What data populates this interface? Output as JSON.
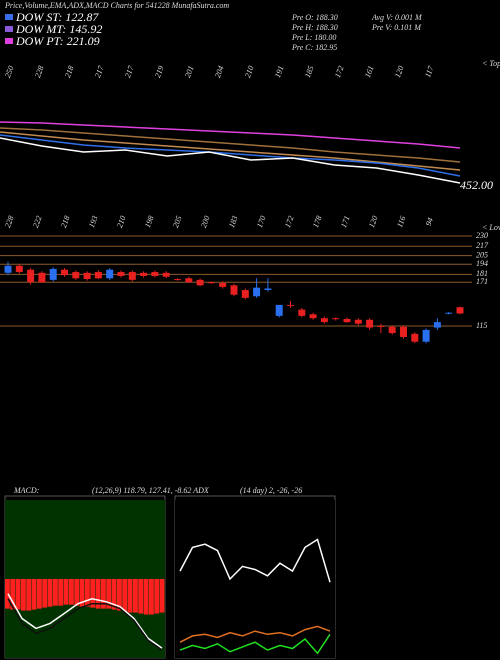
{
  "chart_data": [
    {
      "type": "line",
      "title": "Price,Volume,EMA,ADX,MACD Charts for 541228 MunafaSutra.com",
      "legend": [
        {
          "text": "DOW ST: 122.87",
          "color": "#3a6ee8"
        },
        {
          "text": "DOW MT: 145.92",
          "color": "#8a5ad8"
        },
        {
          "text": "DOW PT: 221.09",
          "color": "#e040e0"
        }
      ],
      "info": [
        "Pre  O: 188.30",
        "Pre  H: 188.30",
        "Pre  L: 180.00",
        "Pre  C: 182.95",
        "Avg V: 0.001 M",
        "Pre  V: 0.101 M"
      ],
      "top_labels": [
        "250",
        "228",
        "218",
        "217",
        "217",
        "219",
        "201",
        "204",
        "210",
        "191",
        "185",
        "172",
        "161",
        "120",
        "117"
      ],
      "tops_caption": "< Tops",
      "last_label": "452.00",
      "ylim": [
        440,
        590
      ],
      "series": [
        {
          "color": "#e040e0",
          "values": [
            578,
            576,
            572,
            568,
            564,
            560,
            556,
            552,
            546,
            540,
            534,
            526
          ]
        },
        {
          "color": "#a0703a",
          "values": [
            566,
            562,
            556,
            550,
            544,
            538,
            532,
            526,
            518,
            512,
            506,
            498
          ]
        },
        {
          "color": "#c08a50",
          "values": [
            558,
            550,
            542,
            536,
            530,
            524,
            518,
            512,
            506,
            498,
            490,
            482
          ]
        },
        {
          "color": "#2f6fe8",
          "values": [
            552,
            542,
            532,
            526,
            522,
            518,
            512,
            506,
            502,
            496,
            486,
            470
          ]
        },
        {
          "color": "#ffffff",
          "values": [
            546,
            530,
            518,
            522,
            510,
            518,
            502,
            506,
            492,
            486,
            472,
            456
          ]
        }
      ]
    },
    {
      "type": "candlestick",
      "low_labels": [
        "228",
        "222",
        "218",
        "193",
        "210",
        "198",
        "205",
        "200",
        "183",
        "170",
        "172",
        "178",
        "171",
        "120",
        "116",
        "94"
      ],
      "lows_caption": "< Lows",
      "ylim": [
        90,
        240
      ],
      "yticks": [
        230,
        217,
        205,
        194,
        181,
        171,
        115
      ],
      "up_color": "#2a6ff0",
      "down_color": "#e82020",
      "grid_color": "#8b5a2b",
      "open": [
        183,
        192,
        187,
        183,
        174,
        187,
        184,
        183,
        184,
        176,
        184,
        184,
        183,
        184,
        183,
        175,
        176,
        174,
        171,
        170,
        167,
        161,
        153,
        161,
        128,
        142,
        136,
        130,
        125,
        125,
        124,
        123,
        123,
        115,
        114,
        114,
        105,
        95,
        113,
        131,
        139
      ],
      "high": [
        197,
        194,
        189,
        185,
        190,
        189,
        186,
        185,
        186,
        189,
        186,
        186,
        185,
        186,
        185,
        176,
        178,
        176,
        172,
        172,
        169,
        163,
        176,
        176,
        142,
        147,
        138,
        132,
        127,
        126,
        126,
        125,
        125,
        118,
        116,
        116,
        107,
        112,
        125,
        133,
        140
      ],
      "low": [
        180,
        182,
        168,
        170,
        172,
        178,
        174,
        173,
        175,
        174,
        177,
        172,
        177,
        177,
        176,
        173,
        170,
        166,
        169,
        163,
        153,
        149,
        151,
        159,
        126,
        138,
        126,
        123,
        118,
        122,
        119,
        116,
        110,
        106,
        104,
        99,
        93,
        93,
        110,
        130,
        130
      ],
      "close": [
        192,
        184,
        171,
        171,
        188,
        180,
        176,
        175,
        176,
        187,
        179,
        174,
        179,
        179,
        178,
        174,
        171,
        167,
        170,
        165,
        155,
        151,
        164,
        163,
        142,
        141,
        128,
        125,
        120,
        124,
        120,
        118,
        113,
        114,
        106,
        101,
        95,
        110,
        120,
        132,
        131
      ]
    },
    {
      "type": "macd",
      "label": "MACD:",
      "params": "(12,26,9) 118.79, 127.41, -8.62 ADX",
      "ylim": [
        -80,
        80
      ],
      "background": "#003300",
      "bar_color": "#ff2020",
      "histogram": [
        -30,
        -31,
        -31,
        -32,
        -32,
        -31,
        -30,
        -29,
        -28,
        -27,
        -27,
        -26,
        -26,
        -27,
        -28,
        -28,
        -29,
        -30,
        -30,
        -30,
        -31,
        -32,
        -33,
        -34,
        -34,
        -35,
        -36,
        -36,
        -35,
        -34
      ],
      "series": [
        {
          "color": "#ffffff",
          "values": [
            -15,
            -40,
            -50,
            -45,
            -35,
            -25,
            -20,
            -23,
            -28,
            -40,
            -60,
            -70
          ]
        },
        {
          "color": "#111111",
          "values": [
            -20,
            -45,
            -55,
            -50,
            -40,
            -30,
            -25,
            -25,
            -30,
            -42,
            -62,
            -72
          ]
        }
      ]
    },
    {
      "type": "adx",
      "params": "(14 day) 2, -26, -26",
      "ylim": [
        0,
        100
      ],
      "background": "#000000",
      "series": [
        {
          "color": "#ffffff",
          "values": [
            55,
            70,
            72,
            68,
            50,
            58,
            56,
            52,
            60,
            55,
            70,
            75,
            48
          ]
        },
        {
          "color": "#e07020",
          "values": [
            10,
            14,
            15,
            13,
            16,
            14,
            17,
            15,
            16,
            14,
            18,
            20,
            17
          ]
        },
        {
          "color": "#20e020",
          "values": [
            5,
            8,
            6,
            9,
            4,
            7,
            10,
            5,
            8,
            6,
            12,
            3,
            15
          ]
        }
      ]
    }
  ]
}
